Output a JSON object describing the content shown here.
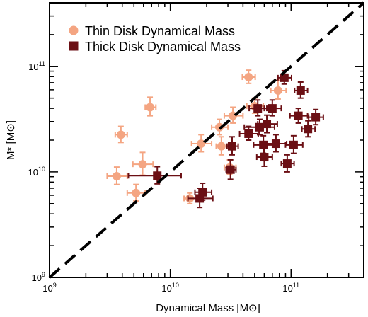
{
  "chart_data": {
    "type": "scatter",
    "title": "",
    "xlabel": "Dynamical Mass [M⊙]",
    "ylabel": "M* [M⊙]",
    "x_scale": "log",
    "y_scale": "log",
    "xlim": [
      1000000000.0,
      400000000000.0
    ],
    "ylim": [
      1000000000.0,
      400000000000.0
    ],
    "grid": false,
    "legend_position": "top-left",
    "x_ticks": [
      {
        "value": 1000000000.0,
        "base": "10",
        "exp": "9"
      },
      {
        "value": 10000000000.0,
        "base": "10",
        "exp": "10"
      },
      {
        "value": 100000000000.0,
        "base": "10",
        "exp": "11"
      }
    ],
    "y_ticks": [
      {
        "value": 1000000000.0,
        "base": "10",
        "exp": "9"
      },
      {
        "value": 10000000000.0,
        "base": "10",
        "exp": "10"
      },
      {
        "value": 100000000000.0,
        "base": "10",
        "exp": "11"
      }
    ],
    "reference_line": {
      "style": "dashed",
      "color": "#000000",
      "description": "one-to-one",
      "x": [
        1000000000.0,
        400000000000.0
      ],
      "y": [
        1000000000.0,
        400000000000.0
      ]
    },
    "series": [
      {
        "name": "Thin Disk Dynamical Mass",
        "marker": "circle",
        "color": "#f4a582",
        "points": [
          {
            "x": 3600000000.0,
            "y": 9100000000.0,
            "xerr": [
              600000000.0,
              800000000.0
            ],
            "yerr": [
              1500000000.0,
              2000000000.0
            ]
          },
          {
            "x": 3900000000.0,
            "y": 22500000000.0,
            "xerr": [
              400000000.0,
              500000000.0
            ],
            "yerr": [
              3500000000.0,
              4500000000.0
            ]
          },
          {
            "x": 5200000000.0,
            "y": 6300000000.0,
            "xerr": [
              800000000.0,
              1000000000.0
            ],
            "yerr": [
              1000000000.0,
              1300000000.0
            ]
          },
          {
            "x": 5900000000.0,
            "y": 11800000000.0,
            "xerr": [
              1000000000.0,
              1300000000.0
            ],
            "yerr": [
              2500000000.0,
              3500000000.0
            ]
          },
          {
            "x": 6800000000.0,
            "y": 41000000000.0,
            "xerr": [
              600000000.0,
              800000000.0
            ],
            "yerr": [
              7000000000.0,
              10000000000.0
            ]
          },
          {
            "x": 14500000000.0,
            "y": 5600000000.0,
            "xerr": [
              1500000000.0,
              2000000000.0
            ],
            "yerr": [
              600000000.0,
              700000000.0
            ]
          },
          {
            "x": 18000000000.0,
            "y": 18500000000.0,
            "xerr": [
              3000000000.0,
              4000000000.0
            ],
            "yerr": [
              3000000000.0,
              4000000000.0
            ]
          },
          {
            "x": 25500000000.0,
            "y": 26500000000.0,
            "xerr": [
              3500000000.0,
              4500000000.0
            ],
            "yerr": [
              4000000000.0,
              5000000000.0
            ]
          },
          {
            "x": 26500000000.0,
            "y": 17500000000.0,
            "xerr": [
              2500000000.0,
              3500000000.0
            ],
            "yerr": [
              3000000000.0,
              4000000000.0
            ]
          },
          {
            "x": 31000000000.0,
            "y": 11000000000.0,
            "xerr": [
              3000000000.0,
              4000000000.0
            ],
            "yerr": [
              1500000000.0,
              2000000000.0
            ]
          },
          {
            "x": 33000000000.0,
            "y": 34000000000.0,
            "xerr": [
              5000000000.0,
              7000000000.0
            ],
            "yerr": [
              5000000000.0,
              7000000000.0
            ]
          },
          {
            "x": 44500000000.0,
            "y": 79000000000.0,
            "xerr": [
              5000000000.0,
              6000000000.0
            ],
            "yerr": [
              10000000000.0,
              13000000000.0
            ]
          },
          {
            "x": 50000000000.0,
            "y": 42000000000.0,
            "xerr": [
              7000000000.0,
              9000000000.0
            ],
            "yerr": [
              6000000000.0,
              8000000000.0
            ]
          },
          {
            "x": 78000000000.0,
            "y": 59000000000.0,
            "xerr": [
              10000000000.0,
              13000000000.0
            ],
            "yerr": [
              10000000000.0,
              15000000000.0
            ]
          }
        ]
      },
      {
        "name": "Thick Disk Dynamical Mass",
        "marker": "square",
        "color": "#6b0f14",
        "points": [
          {
            "x": 7800000000.0,
            "y": 9200000000.0,
            "xerr": [
              3300000000.0,
              4500000000.0
            ],
            "yerr": [
              1500000000.0,
              2000000000.0
            ]
          },
          {
            "x": 17500000000.0,
            "y": 5600000000.0,
            "xerr": [
              3500000000.0,
              5000000000.0
            ],
            "yerr": [
              1000000000.0,
              1400000000.0
            ]
          },
          {
            "x": 18500000000.0,
            "y": 6400000000.0,
            "xerr": [
              2500000000.0,
              3500000000.0
            ],
            "yerr": [
              1000000000.0,
              1400000000.0
            ]
          },
          {
            "x": 31500000000.0,
            "y": 10500000000.0,
            "xerr": [
              2500000000.0,
              3500000000.0
            ],
            "yerr": [
              2000000000.0,
              2500000000.0
            ]
          },
          {
            "x": 32500000000.0,
            "y": 17500000000.0,
            "xerr": [
              3000000000.0,
              4000000000.0
            ],
            "yerr": [
              3000000000.0,
              4000000000.0
            ]
          },
          {
            "x": 44500000000.0,
            "y": 23000000000.0,
            "xerr": [
              7000000000.0,
              9000000000.0
            ],
            "yerr": [
              3000000000.0,
              4000000000.0
            ]
          },
          {
            "x": 53000000000.0,
            "y": 40000000000.0,
            "xerr": [
              8000000000.0,
              10000000000.0
            ],
            "yerr": [
              6000000000.0,
              8000000000.0
            ]
          },
          {
            "x": 55000000000.0,
            "y": 26500000000.0,
            "xerr": [
              14000000000.0,
              18000000000.0
            ],
            "yerr": [
              4000000000.0,
              5000000000.0
            ]
          },
          {
            "x": 59000000000.0,
            "y": 18000000000.0,
            "xerr": [
              10000000000.0,
              13000000000.0
            ],
            "yerr": [
              3000000000.0,
              4000000000.0
            ]
          },
          {
            "x": 60000000000.0,
            "y": 13800000000.0,
            "xerr": [
              8000000000.0,
              10000000000.0
            ],
            "yerr": [
              2500000000.0,
              3500000000.0
            ]
          },
          {
            "x": 63000000000.0,
            "y": 28500000000.0,
            "xerr": [
              10000000000.0,
              14000000000.0
            ],
            "yerr": [
              5000000000.0,
              6000000000.0
            ]
          },
          {
            "x": 70000000000.0,
            "y": 40000000000.0,
            "xerr": [
              10000000000.0,
              13000000000.0
            ],
            "yerr": [
              6000000000.0,
              8000000000.0
            ]
          },
          {
            "x": 75000000000.0,
            "y": 18500000000.0,
            "xerr": [
              13000000000.0,
              17000000000.0
            ],
            "yerr": [
              3000000000.0,
              4000000000.0
            ]
          },
          {
            "x": 88000000000.0,
            "y": 78000000000.0,
            "xerr": [
              10000000000.0,
              13000000000.0
            ],
            "yerr": [
              10000000000.0,
              13000000000.0
            ]
          },
          {
            "x": 93000000000.0,
            "y": 12000000000.0,
            "xerr": [
              10000000000.0,
              13000000000.0
            ],
            "yerr": [
              2000000000.0,
              2500000000.0
            ]
          },
          {
            "x": 105000000000.0,
            "y": 18000000000.0,
            "xerr": [
              15000000000.0,
              20000000000.0
            ],
            "yerr": [
              3000000000.0,
              4000000000.0
            ]
          },
          {
            "x": 115000000000.0,
            "y": 34000000000.0,
            "xerr": [
              17000000000.0,
              22000000000.0
            ],
            "yerr": [
              5000000000.0,
              6000000000.0
            ]
          },
          {
            "x": 120000000000.0,
            "y": 59000000000.0,
            "xerr": [
              13000000000.0,
              17000000000.0
            ],
            "yerr": [
              9000000000.0,
              12000000000.0
            ]
          },
          {
            "x": 138000000000.0,
            "y": 25500000000.0,
            "xerr": [
              15000000000.0,
              20000000000.0
            ],
            "yerr": [
              4000000000.0,
              5000000000.0
            ]
          },
          {
            "x": 160000000000.0,
            "y": 33000000000.0,
            "xerr": [
              20000000000.0,
              25000000000.0
            ],
            "yerr": [
              5000000000.0,
              6000000000.0
            ]
          }
        ]
      }
    ]
  }
}
